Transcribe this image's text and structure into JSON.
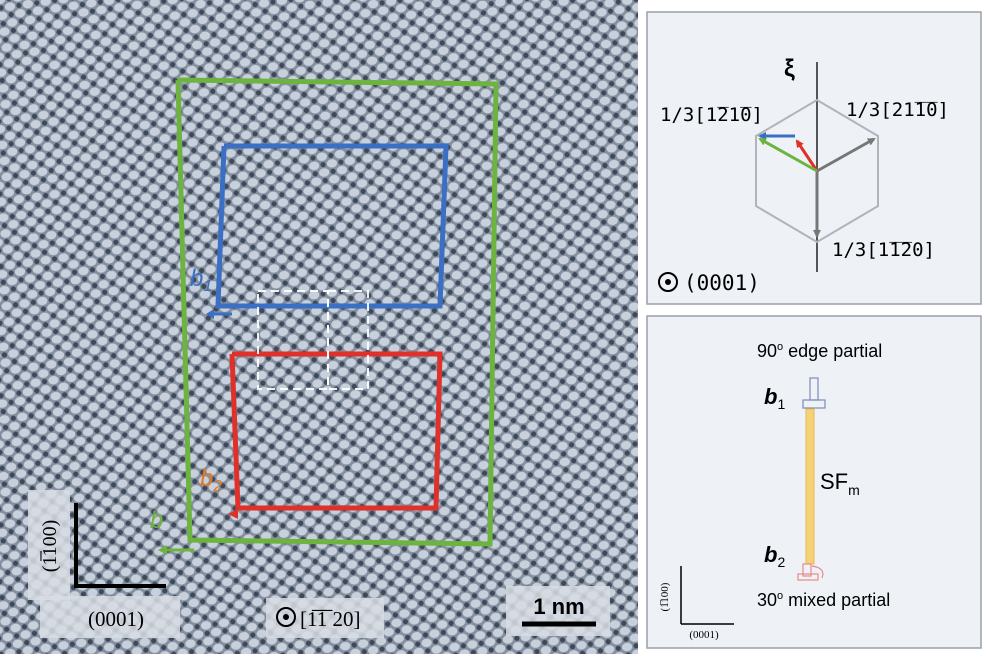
{
  "micrograph": {
    "b1": "b",
    "b1_sub": "1",
    "b2": "b",
    "b2_sub": "2",
    "b": "b",
    "axis_vertical": "(1̅100)",
    "axis_horizontal": "(0001)",
    "view_direction": "[1̅1̅ 20]",
    "scale_bar": "1 nm",
    "colors": {
      "green": "#6cb33f",
      "blue": "#3a6fc4",
      "red": "#e0302a",
      "orange": "#e07a20"
    }
  },
  "top_panel": {
    "xi": "ξ",
    "label_upper_left": "1/3[1̅21̅0]",
    "label_upper_right": "1/3[21̅1̅0]",
    "label_bottom": "1/3[1̅1̅20]",
    "view": "(0001)",
    "arrow_colors": {
      "blue": "#3a6fc4",
      "red": "#e0302a",
      "green": "#6cb33f",
      "gray": "#777777"
    }
  },
  "bottom_panel": {
    "top_label": "90",
    "top_label_sup": "o",
    "top_label_rest": " edge partial",
    "b1": "b",
    "b1_sub": "1",
    "sf": "SF",
    "sf_sub": "m",
    "b2": "b",
    "b2_sub": "2",
    "bottom_label": "30",
    "bottom_label_sup": "o",
    "bottom_label_rest": " mixed partial",
    "axis_vertical": "(1̅100)",
    "axis_horizontal": "(0001)"
  }
}
